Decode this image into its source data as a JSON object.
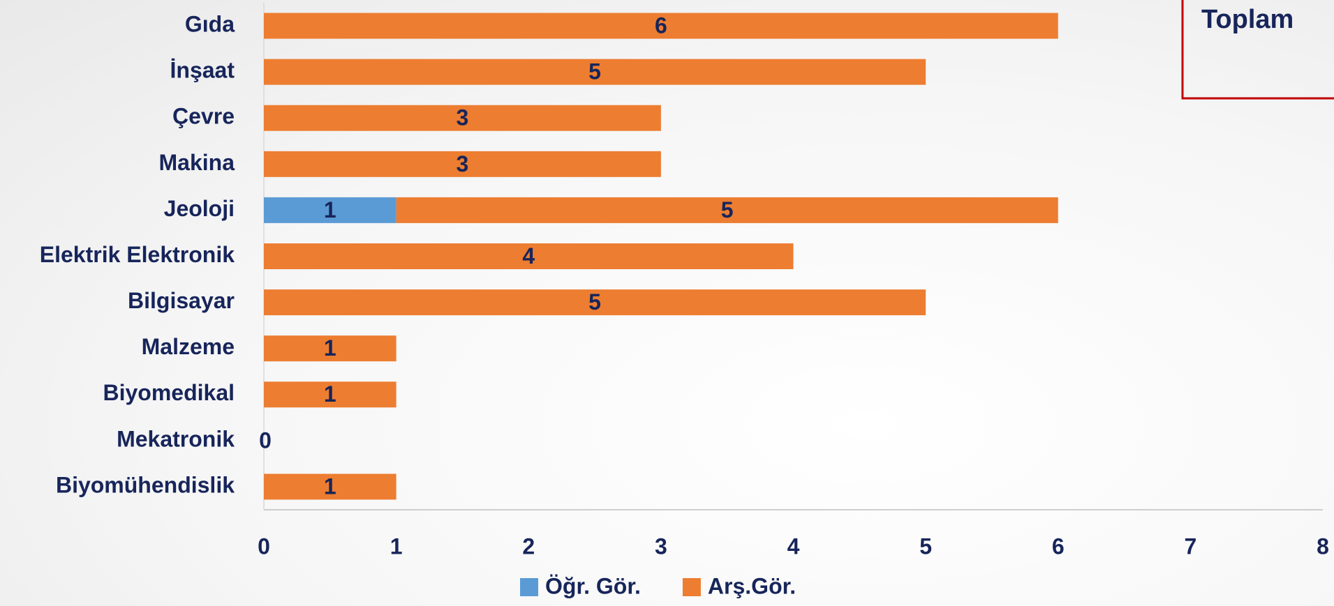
{
  "chart_data": {
    "type": "stacked-bar-horizontal",
    "categories": [
      "Gıda",
      "İnşaat",
      "Çevre",
      "Makina",
      "Jeoloji",
      "Elektrik Elektronik",
      "Bilgisayar",
      "Malzeme",
      "Biyomedikal",
      "Mekatronik",
      "Biyomühendislik"
    ],
    "series": [
      {
        "name": "Öğr. Gör.",
        "color": "#5b9bd5",
        "values": [
          null,
          null,
          null,
          null,
          1,
          null,
          null,
          null,
          null,
          null,
          null
        ]
      },
      {
        "name": "Arş.Gör.",
        "color": "#ed7d31",
        "values": [
          6,
          5,
          3,
          3,
          5,
          4,
          5,
          1,
          1,
          0,
          1
        ]
      }
    ],
    "xlim": [
      0,
      8
    ],
    "xticks": [
      0,
      1,
      2,
      3,
      4,
      5,
      6,
      7,
      8
    ],
    "annotation": "Toplam",
    "legend": "bottom"
  }
}
